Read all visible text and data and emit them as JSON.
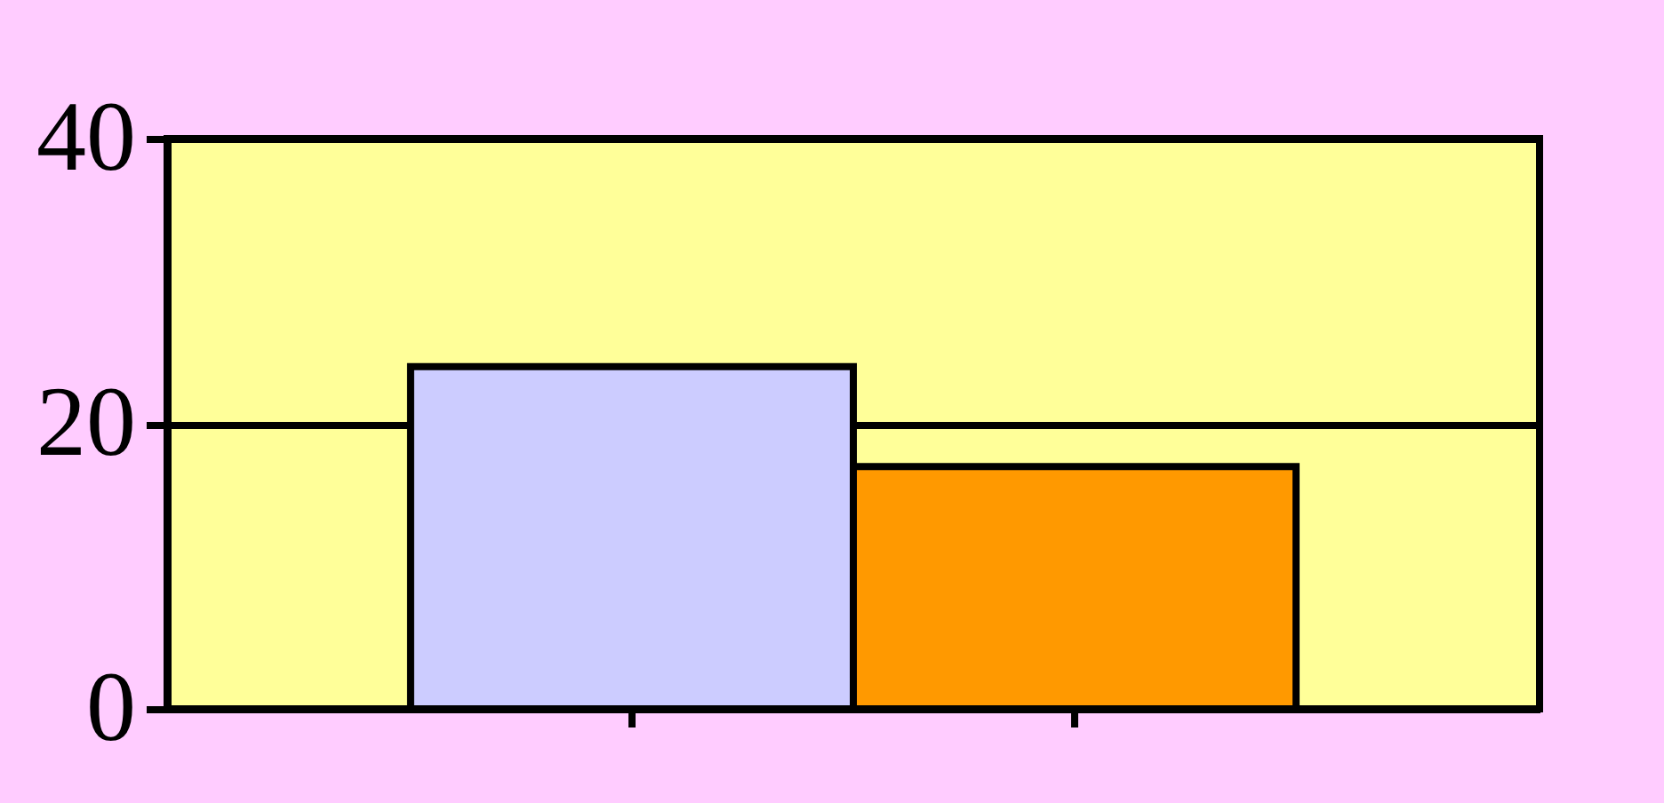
{
  "chart_data": {
    "type": "bar",
    "categories": [
      null,
      null
    ],
    "values": [
      24,
      17
    ],
    "colors": [
      "#ccccff",
      "#ff9900"
    ],
    "ylim": [
      0,
      40
    ],
    "yticks": [
      0,
      20,
      40
    ],
    "grid": "y"
  }
}
